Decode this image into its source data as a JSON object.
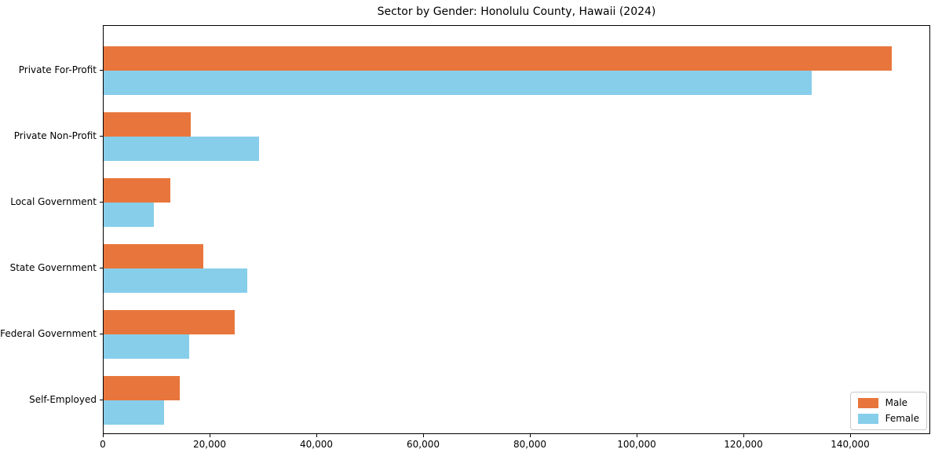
{
  "chart_data": {
    "type": "bar",
    "orientation": "horizontal",
    "title": "Sector by Gender: Honolulu County, Hawaii (2024)",
    "categories": [
      "Private For-Profit",
      "Private Non-Profit",
      "Local Government",
      "State Government",
      "Federal Government",
      "Self-Employed"
    ],
    "series": [
      {
        "name": "Male",
        "color": "#e8763c",
        "values": [
          147600,
          16300,
          12500,
          18700,
          24600,
          14300
        ]
      },
      {
        "name": "Female",
        "color": "#87ceeb",
        "values": [
          132600,
          29100,
          9400,
          26900,
          16000,
          11300
        ]
      }
    ],
    "xlim": [
      0,
      155000
    ],
    "xticks": [
      0,
      20000,
      40000,
      60000,
      80000,
      100000,
      120000,
      140000
    ],
    "xtick_labels": [
      "0",
      "20,000",
      "40,000",
      "60,000",
      "80,000",
      "100,000",
      "120,000",
      "140,000"
    ],
    "grid": false,
    "legend": {
      "position": "lower right",
      "entries": [
        "Male",
        "Female"
      ]
    }
  }
}
